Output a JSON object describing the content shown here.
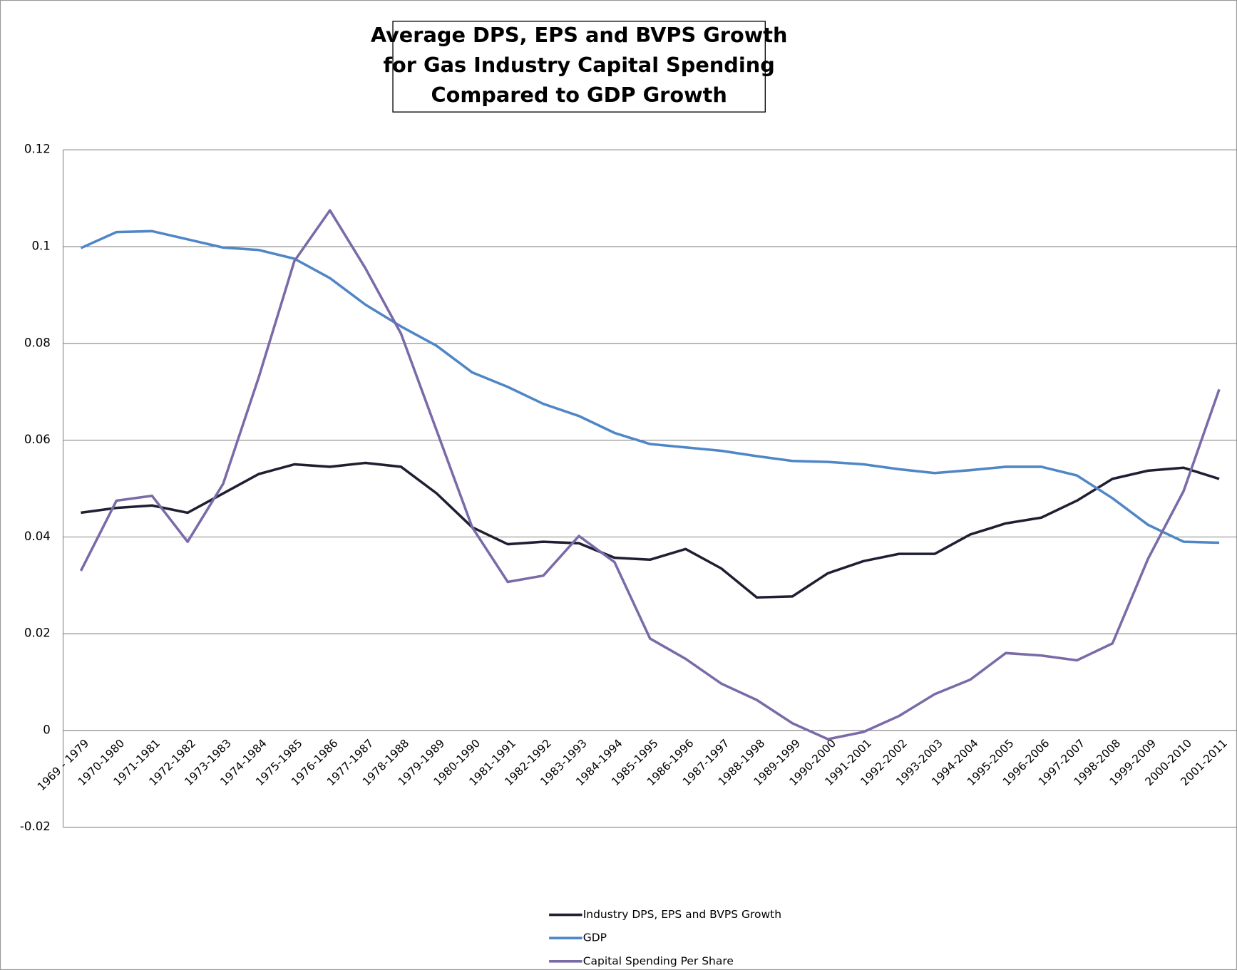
{
  "chart_data": {
    "type": "line",
    "title": [
      "Average DPS, EPS and BVPS Growth",
      "for Gas Industry Capital Spending",
      "Compared to GDP Growth"
    ],
    "categories": [
      "1969 - 1979",
      "1970-1980",
      "1971-1981",
      "1972-1982",
      "1973-1983",
      "1974-1984",
      "1975-1985",
      "1976-1986",
      "1977-1987",
      "1978-1988",
      "1979-1989",
      "1980-1990",
      "1981-1991",
      "1982-1992",
      "1983-1993",
      "1984-1994",
      "1985-1995",
      "1986-1996",
      "1987-1997",
      "1988-1998",
      "1989-1999",
      "1990-2000",
      "1991-2001",
      "1992-2002",
      "1993-2003",
      "1994-2004",
      "1995-2005",
      "1996-2006",
      "1997-2007",
      "1998-2008",
      "1999-2009",
      "2000-2010",
      "2001-2011"
    ],
    "series": [
      {
        "name": "Industry DPS, EPS and BVPS Growth",
        "color": "#1f1f33",
        "values": [
          0.045,
          0.046,
          0.0465,
          0.045,
          0.049,
          0.053,
          0.055,
          0.0545,
          0.0553,
          0.0545,
          0.049,
          0.042,
          0.0385,
          0.039,
          0.0387,
          0.0357,
          0.0353,
          0.0375,
          0.0335,
          0.0275,
          0.0277,
          0.0325,
          0.035,
          0.0365,
          0.0365,
          0.0405,
          0.0428,
          0.044,
          0.0475,
          0.052,
          0.0537,
          0.0543,
          0.052
        ]
      },
      {
        "name": "GDP",
        "color": "#4f86c6",
        "values": [
          0.0997,
          0.103,
          0.1032,
          0.1015,
          0.0998,
          0.0993,
          0.0975,
          0.0935,
          0.088,
          0.0835,
          0.0795,
          0.074,
          0.071,
          0.0675,
          0.065,
          0.0615,
          0.0592,
          0.0585,
          0.0578,
          0.0567,
          0.0557,
          0.0555,
          0.055,
          0.054,
          0.0532,
          0.0538,
          0.0545,
          0.0545,
          0.0527,
          0.048,
          0.0425,
          0.039,
          0.0388
        ]
      },
      {
        "name": "Capital Spending Per Share",
        "color": "#7a6aa8",
        "values": [
          0.033,
          0.0475,
          0.0485,
          0.039,
          0.051,
          0.073,
          0.097,
          0.1075,
          0.0955,
          0.082,
          0.062,
          0.042,
          0.0307,
          0.032,
          0.0402,
          0.0348,
          0.019,
          0.0148,
          0.0097,
          0.0063,
          0.0015,
          -0.0018,
          -0.0003,
          0.003,
          0.0075,
          0.0105,
          0.016,
          0.0155,
          0.0145,
          0.018,
          0.0355,
          0.0495,
          0.0705
        ]
      }
    ],
    "ylim": [
      -0.02,
      0.12
    ],
    "yticks": [
      -0.02,
      0,
      0.02,
      0.04,
      0.06,
      0.08,
      0.1,
      0.12
    ],
    "grid": true
  }
}
